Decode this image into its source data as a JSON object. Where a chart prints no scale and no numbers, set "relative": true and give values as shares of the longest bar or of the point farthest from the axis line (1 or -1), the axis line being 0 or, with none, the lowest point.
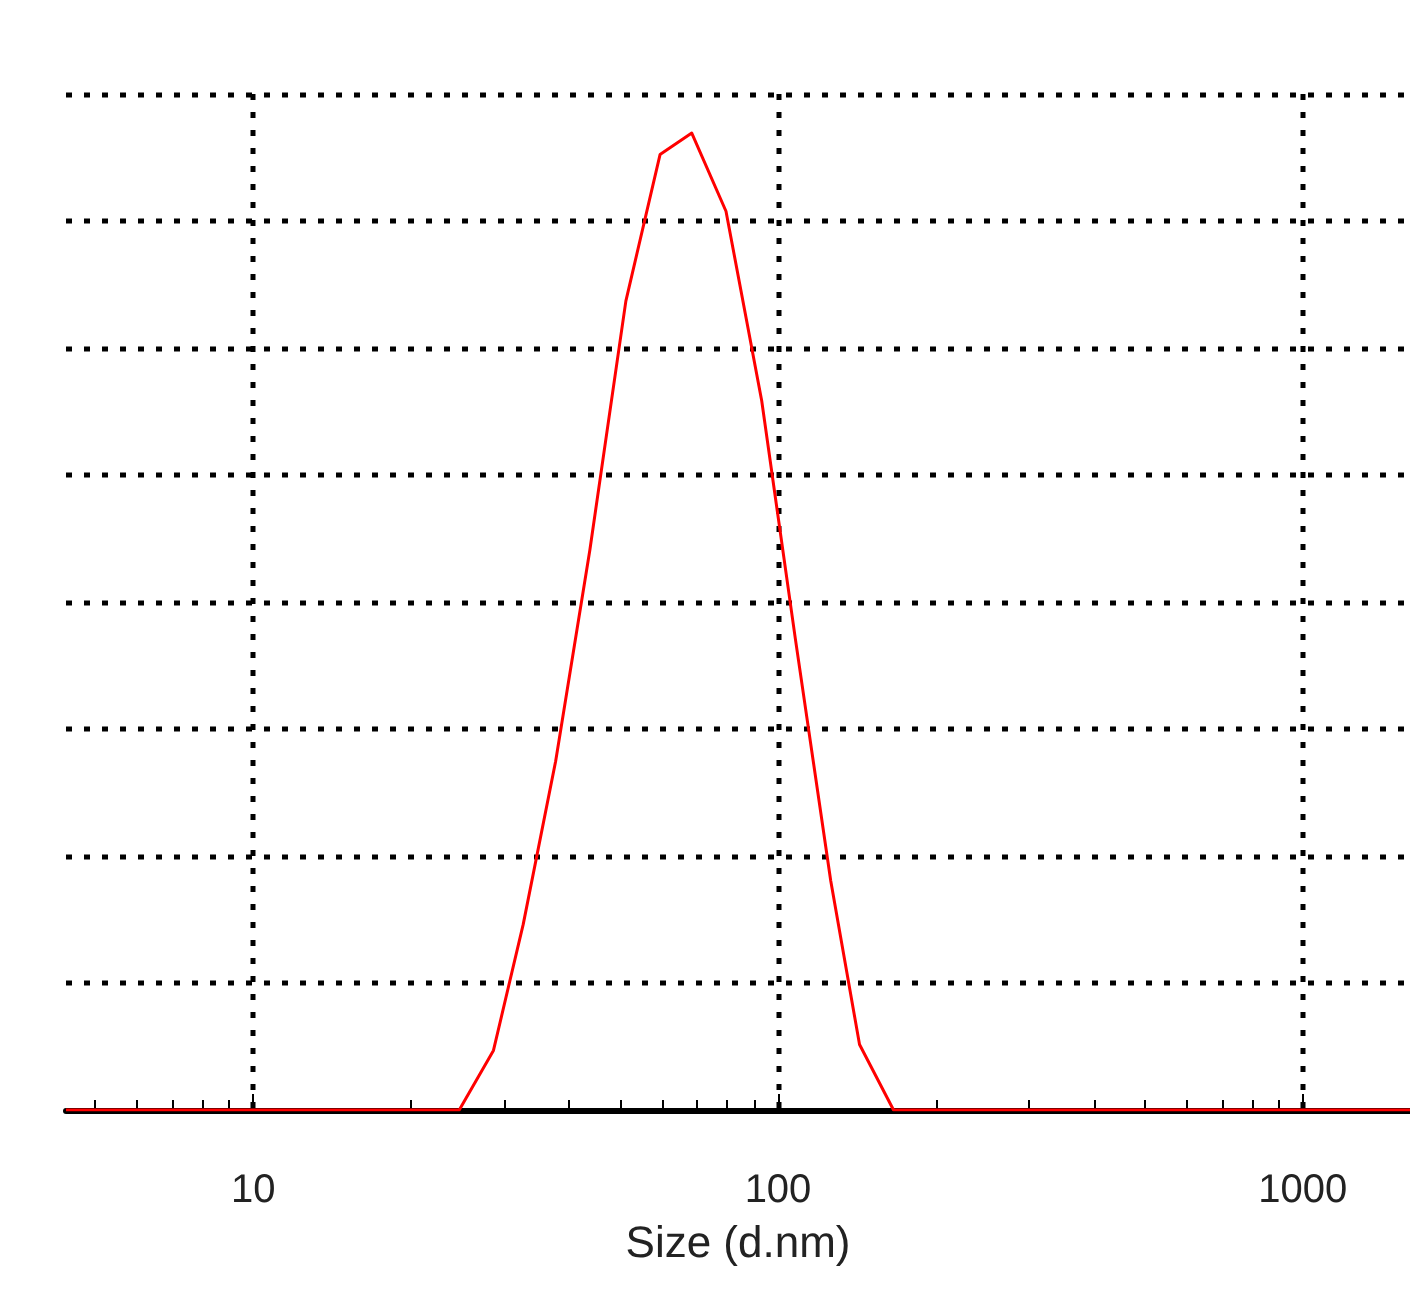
{
  "chart_data": {
    "type": "line",
    "xlabel": "Size (d.nm)",
    "relative": true,
    "log": "x",
    "xlim": [
      4.4,
      1600
    ],
    "xticks": [
      10,
      100,
      1000
    ],
    "grid": true,
    "marker": "none",
    "line_style": "solid",
    "series": [
      {
        "color": "#ff0000",
        "x": [
          4.4,
          24.7,
          28.7,
          32.7,
          37.7,
          43.8,
          51.3,
          59.6,
          68.5,
          79.6,
          93.1,
          108,
          126,
          143,
          166,
          1600
        ],
        "values": [
          0,
          0,
          0.061,
          0.19,
          0.357,
          0.573,
          0.828,
          0.978,
          1,
          0.92,
          0.726,
          0.481,
          0.235,
          0.067,
          0,
          0
        ]
      }
    ]
  }
}
